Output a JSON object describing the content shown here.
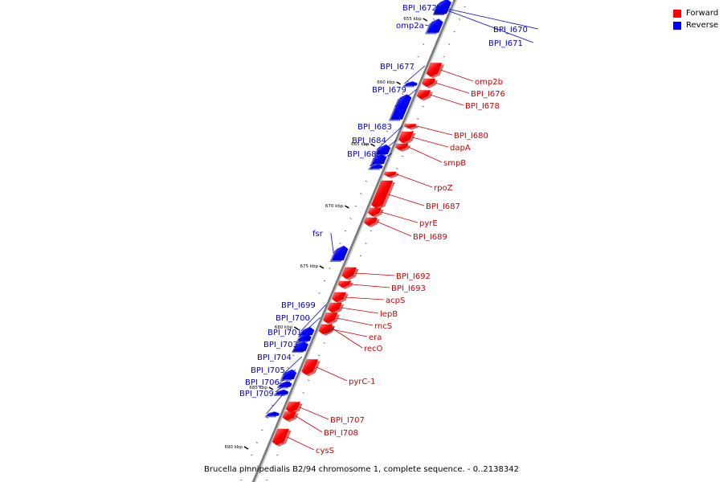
{
  "legend": {
    "forward_label": "Forward",
    "reverse_label": "Reverse",
    "forward_color": "#ff0000",
    "reverse_color": "#0000ff"
  },
  "caption": "Brucella pinnipedialis B2/94 chromosome 1, complete sequence. - 0..2138342",
  "scale_labels": [
    "655 kbp",
    "660 kbp",
    "665 kbp",
    "670 kbp",
    "675 kbp",
    "680 kbp",
    "685 kbp",
    "690 kbp"
  ],
  "genes": [
    {
      "name": "BPI_I672",
      "strand": "reverse"
    },
    {
      "name": "BPI_I670",
      "strand": "reverse"
    },
    {
      "name": "omp2a",
      "strand": "reverse"
    },
    {
      "name": "BPI_I671",
      "strand": "reverse"
    },
    {
      "name": "BPI_I677",
      "strand": "reverse"
    },
    {
      "name": "omp2b",
      "strand": "forward"
    },
    {
      "name": "BPI_I676",
      "strand": "forward"
    },
    {
      "name": "BPI_I679",
      "strand": "reverse"
    },
    {
      "name": "BPI_I678",
      "strand": "forward"
    },
    {
      "name": "BPI_I683",
      "strand": "reverse"
    },
    {
      "name": "BPI_I680",
      "strand": "forward"
    },
    {
      "name": "BPI_I684",
      "strand": "reverse"
    },
    {
      "name": "dapA",
      "strand": "forward"
    },
    {
      "name": "BPI_I685",
      "strand": "reverse"
    },
    {
      "name": "smpB",
      "strand": "forward"
    },
    {
      "name": "rpoZ",
      "strand": "forward"
    },
    {
      "name": "BPI_I687",
      "strand": "forward"
    },
    {
      "name": "pyrE",
      "strand": "forward"
    },
    {
      "name": "BPI_I689",
      "strand": "forward"
    },
    {
      "name": "fsr",
      "strand": "reverse"
    },
    {
      "name": "BPI_I692",
      "strand": "forward"
    },
    {
      "name": "BPI_I693",
      "strand": "forward"
    },
    {
      "name": "acpS",
      "strand": "forward"
    },
    {
      "name": "BPI_I699",
      "strand": "reverse"
    },
    {
      "name": "lepB",
      "strand": "forward"
    },
    {
      "name": "BPI_I700",
      "strand": "reverse"
    },
    {
      "name": "rncS",
      "strand": "forward"
    },
    {
      "name": "BPI_I701",
      "strand": "reverse"
    },
    {
      "name": "era",
      "strand": "forward"
    },
    {
      "name": "BPI_I703",
      "strand": "reverse"
    },
    {
      "name": "recO",
      "strand": "forward"
    },
    {
      "name": "BPI_I704",
      "strand": "reverse"
    },
    {
      "name": "BPI_I705",
      "strand": "reverse"
    },
    {
      "name": "pyrC-1",
      "strand": "forward"
    },
    {
      "name": "BPI_I706",
      "strand": "reverse"
    },
    {
      "name": "BPI_I709",
      "strand": "reverse"
    },
    {
      "name": "BPI_I707",
      "strand": "forward"
    },
    {
      "name": "BPI_I708",
      "strand": "forward"
    },
    {
      "name": "cysS",
      "strand": "forward"
    }
  ]
}
